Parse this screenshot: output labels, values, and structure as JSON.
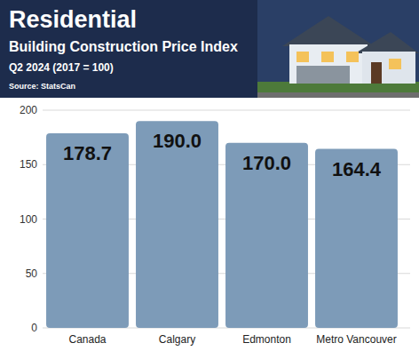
{
  "chart_data": {
    "type": "bar",
    "title": "Residential",
    "subtitle": "Building Construction Price Index",
    "annotations": [
      "Q2 2024 (2017 = 100)",
      "Source: StatsCan"
    ],
    "categories": [
      "Canada",
      "Calgary",
      "Edmonton",
      "Metro Vancouver"
    ],
    "values": [
      178.7,
      190.0,
      170.0,
      164.4
    ],
    "value_labels": [
      "178.7",
      "190.0",
      "170.0",
      "164.4"
    ],
    "color": "#7d9bb8",
    "data_labels": true,
    "ylim": [
      0,
      200
    ],
    "yticks": [
      0,
      50,
      100,
      150,
      200
    ],
    "grid": true
  }
}
